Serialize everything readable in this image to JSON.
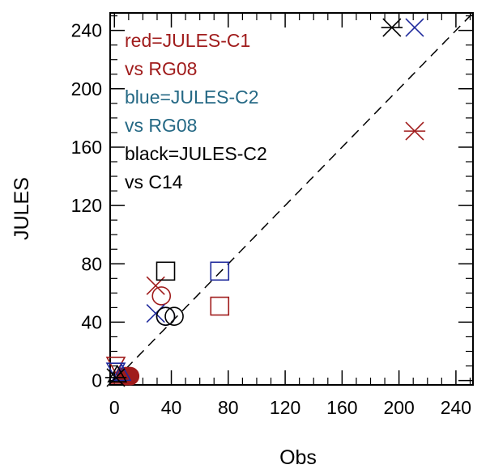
{
  "chart_data": {
    "type": "scatter",
    "xlabel": "Obs",
    "ylabel": "JULES",
    "xlim": [
      -3,
      252
    ],
    "ylim": [
      -3,
      252
    ],
    "x_ticks": [
      0,
      40,
      80,
      120,
      160,
      200,
      240
    ],
    "y_ticks": [
      0,
      40,
      80,
      120,
      160,
      200,
      240
    ],
    "reference_line": {
      "style": "dashed",
      "color": "#000000",
      "from": [
        0,
        0
      ],
      "to": [
        252,
        252
      ]
    },
    "annotations": [
      {
        "text": "red=JULES-C1",
        "color": "#a01c1c"
      },
      {
        "text": "vs RG08",
        "color": "#a01c1c"
      },
      {
        "text": "blue=JULES-C2",
        "color": "#256985"
      },
      {
        "text": "vs RG08",
        "color": "#256985"
      },
      {
        "text": "black=JULES-C2",
        "color": "#000000"
      },
      {
        "text": "vs C14",
        "color": "#000000"
      }
    ],
    "series": [
      {
        "color": "#a01c1c",
        "points": [
          {
            "x": 211,
            "y": 171,
            "marker": "asterisk"
          },
          {
            "x": 29,
            "y": 65,
            "marker": "cross"
          },
          {
            "x": 33,
            "y": 58,
            "marker": "circle"
          },
          {
            "x": 74,
            "y": 51,
            "marker": "square"
          },
          {
            "x": 1,
            "y": 11,
            "marker": "triangle-down"
          },
          {
            "x": 4,
            "y": 3,
            "marker": "triangle-up"
          },
          {
            "x": 8,
            "y": 3,
            "marker": "filled-circle"
          },
          {
            "x": 11,
            "y": 3,
            "marker": "filled-circle"
          }
        ]
      },
      {
        "color": "#1f2a9c",
        "points": [
          {
            "x": 211,
            "y": 242,
            "marker": "cross"
          },
          {
            "x": 74,
            "y": 75,
            "marker": "square"
          },
          {
            "x": 29,
            "y": 46,
            "marker": "cross"
          },
          {
            "x": 36,
            "y": 44,
            "marker": "circle"
          },
          {
            "x": 1,
            "y": 7,
            "marker": "triangle-down"
          },
          {
            "x": 5,
            "y": 5,
            "marker": "triangle-up"
          }
        ]
      },
      {
        "color": "#000000",
        "points": [
          {
            "x": 195,
            "y": 242,
            "marker": "asterisk"
          },
          {
            "x": 36,
            "y": 75,
            "marker": "square"
          },
          {
            "x": 36,
            "y": 44,
            "marker": "circle"
          },
          {
            "x": 42,
            "y": 44,
            "marker": "circle"
          },
          {
            "x": 2,
            "y": 4,
            "marker": "triangle-up"
          },
          {
            "x": 1,
            "y": 2,
            "marker": "asterisk"
          }
        ]
      }
    ]
  }
}
